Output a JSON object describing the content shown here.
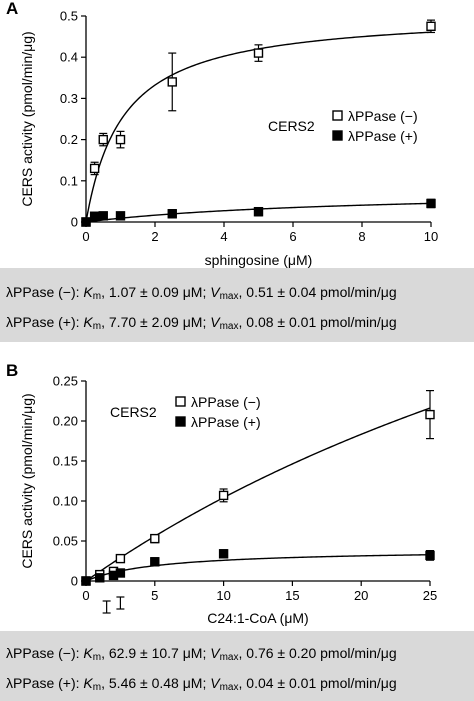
{
  "chart_data": [
    {
      "type": "scatter",
      "panel_label": "A",
      "xlabel": "sphingosine (μM)",
      "ylabel": "CERS activity (pmol/min/μg)",
      "xlim": [
        0,
        10
      ],
      "ylim": [
        0,
        0.5
      ],
      "xticks": [
        0,
        2,
        4,
        6,
        8,
        10
      ],
      "yticks": [
        0,
        0.1,
        0.2,
        0.3,
        0.4,
        0.5
      ],
      "xtick_labels": [
        "0",
        "2",
        "4",
        "6",
        "8",
        "10"
      ],
      "ytick_labels": [
        "0",
        "0.1",
        "0.2",
        "0.3",
        "0.4",
        "0.5"
      ],
      "legend_title": "CERS2",
      "legend_position": "right",
      "grid": false,
      "series": [
        {
          "name": "λPPase (−)",
          "marker": "open-square",
          "x": [
            0,
            0.25,
            0.5,
            1,
            2.5,
            5,
            10
          ],
          "y": [
            0.0,
            0.13,
            0.2,
            0.2,
            0.34,
            0.41,
            0.475
          ],
          "err": [
            0.0,
            0.015,
            0.015,
            0.02,
            0.07,
            0.02,
            0.015
          ],
          "fit": {
            "model": "michaelis-menten",
            "Km": 1.07,
            "Vmax": 0.51
          }
        },
        {
          "name": "λPPase (+)",
          "marker": "filled-square",
          "x": [
            0,
            0.25,
            0.5,
            1,
            2.5,
            5,
            10
          ],
          "y": [
            0.0,
            0.014,
            0.015,
            0.015,
            0.02,
            0.025,
            0.045
          ],
          "err": [
            0.0,
            0.004,
            0.004,
            0.004,
            0.01,
            0.01,
            0.01
          ],
          "fit": {
            "model": "michaelis-menten",
            "Km": 7.7,
            "Vmax": 0.08
          }
        }
      ]
    },
    {
      "type": "scatter",
      "panel_label": "B",
      "xlabel": "C24:1-CoA (μM)",
      "ylabel": "CERS activity (pmol/min/μg)",
      "xlim": [
        0,
        25
      ],
      "ylim": [
        0,
        0.25
      ],
      "xticks": [
        0,
        5,
        10,
        15,
        20,
        25
      ],
      "yticks": [
        0,
        0.05,
        0.1,
        0.15,
        0.2,
        0.25
      ],
      "xtick_labels": [
        "0",
        "5",
        "10",
        "15",
        "20",
        "25"
      ],
      "ytick_labels": [
        "0",
        "0.05",
        "0.10",
        "0.15",
        "0.20",
        "0.25"
      ],
      "legend_title": "CERS2",
      "legend_position": "top-left",
      "grid": false,
      "series": [
        {
          "name": "λPPase (−)",
          "marker": "open-square",
          "x": [
            0,
            1,
            2,
            2.5,
            5,
            10,
            25
          ],
          "y": [
            0.0,
            0.008,
            0.012,
            0.028,
            0.053,
            0.107,
            0.208
          ],
          "err": [
            0.0,
            0.002,
            0.002,
            0.004,
            0.005,
            0.008,
            0.03
          ],
          "fit": {
            "model": "michaelis-menten",
            "Km": 62.9,
            "Vmax": 0.76
          }
        },
        {
          "name": "λPPase (+)",
          "marker": "filled-square",
          "x": [
            0,
            1,
            2,
            2.5,
            5,
            10,
            25
          ],
          "y": [
            0.0,
            0.004,
            0.007,
            0.01,
            0.024,
            0.034,
            0.032
          ],
          "err": [
            0.0,
            0.002,
            0.002,
            0.002,
            0.005,
            0.005,
            0.006
          ],
          "fit": {
            "model": "michaelis-menten",
            "Km": 5.46,
            "Vmax": 0.04
          }
        }
      ],
      "detached_error_bars": [
        {
          "x": 1.5,
          "low": -0.04,
          "high": -0.025
        },
        {
          "x": 2.5,
          "low": -0.035,
          "high": -0.02
        }
      ]
    }
  ],
  "parameters": [
    {
      "rows": [
        {
          "label": "λPPase (−): ",
          "km_sym": "K",
          "km_sub": "m",
          "km_val": ", 1.07 ± 0.09 μM; ",
          "vmax_sym": "V",
          "vmax_sub": "max",
          "vmax_val": ", 0.51 ± 0.04 pmol/min/μg"
        },
        {
          "label": "λPPase (+): ",
          "km_sym": "K",
          "km_sub": "m",
          "km_val": ", 7.70 ± 2.09 μM; ",
          "vmax_sym": "V",
          "vmax_sub": "max",
          "vmax_val": ", 0.08 ± 0.01 pmol/min/μg"
        }
      ]
    },
    {
      "rows": [
        {
          "label": "λPPase (−): ",
          "km_sym": "K",
          "km_sub": "m",
          "km_val": ", 62.9 ± 10.7 μM; ",
          "vmax_sym": "V",
          "vmax_sub": "max",
          "vmax_val": ", 0.76 ± 0.20 pmol/min/μg"
        },
        {
          "label": "λPPase (+): ",
          "km_sym": "K",
          "km_sub": "m",
          "km_val": ", 5.46 ± 0.48 μM; ",
          "vmax_sym": "V",
          "vmax_sub": "max",
          "vmax_val": ", 0.04 ± 0.01 pmol/min/μg"
        }
      ]
    }
  ]
}
